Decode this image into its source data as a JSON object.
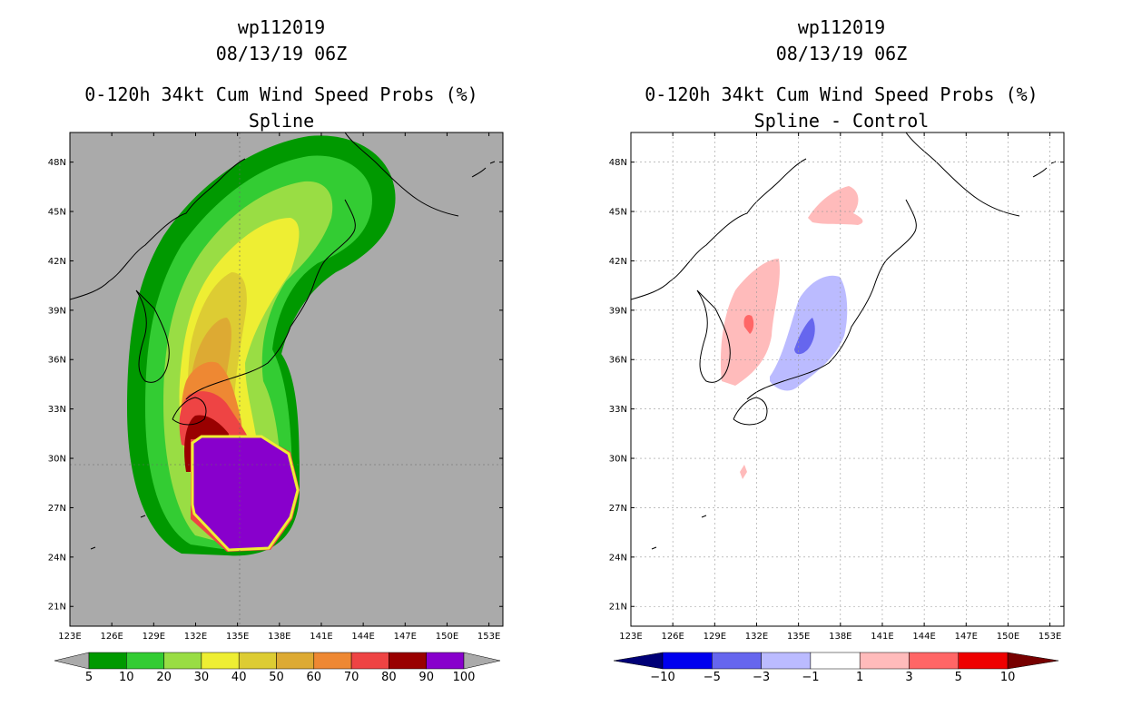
{
  "chart_data": [
    {
      "type": "heatmap",
      "storm": "wp112019",
      "datetime": "08/13/19 06Z",
      "title": "0-120h 34kt Cum Wind Speed Probs (%)",
      "subtitle": "Spline",
      "x_ticks": [
        "123E",
        "126E",
        "129E",
        "132E",
        "135E",
        "138E",
        "141E",
        "144E",
        "147E",
        "150E",
        "153E"
      ],
      "y_ticks": [
        "48N",
        "45N",
        "42N",
        "39N",
        "36N",
        "33N",
        "30N",
        "27N",
        "24N",
        "21N"
      ],
      "xlim": [
        123,
        154
      ],
      "ylim": [
        19.8,
        49.8
      ],
      "levels": [
        "5",
        "10",
        "20",
        "30",
        "40",
        "50",
        "60",
        "70",
        "80",
        "90",
        "100"
      ],
      "level_colors": [
        "#009900",
        "#33cc33",
        "#99dd44",
        "#eeee33",
        "#ddcc33",
        "#ddaa33",
        "#ee8833",
        "#ee4444",
        "#990000",
        "#8800cc"
      ],
      "background": "#aaaaaa"
    },
    {
      "type": "heatmap",
      "storm": "wp112019",
      "datetime": "08/13/19 06Z",
      "title": "0-120h 34kt Cum Wind Speed Probs (%)",
      "subtitle": "Spline - Control",
      "x_ticks": [
        "123E",
        "126E",
        "129E",
        "132E",
        "135E",
        "138E",
        "141E",
        "144E",
        "147E",
        "150E",
        "153E"
      ],
      "y_ticks": [
        "48N",
        "45N",
        "42N",
        "39N",
        "36N",
        "33N",
        "30N",
        "27N",
        "24N",
        "21N"
      ],
      "xlim": [
        123,
        154
      ],
      "ylim": [
        19.8,
        49.8
      ],
      "levels": [
        "−10",
        "−5",
        "−3",
        "−1",
        "1",
        "3",
        "5",
        "10"
      ],
      "level_colors": [
        "#000077",
        "#0000ee",
        "#6666ee",
        "#bbbbff",
        "#ffffff",
        "#ffbbbb",
        "#ff6666",
        "#ee0000",
        "#770000"
      ],
      "background": "#ffffff"
    }
  ]
}
